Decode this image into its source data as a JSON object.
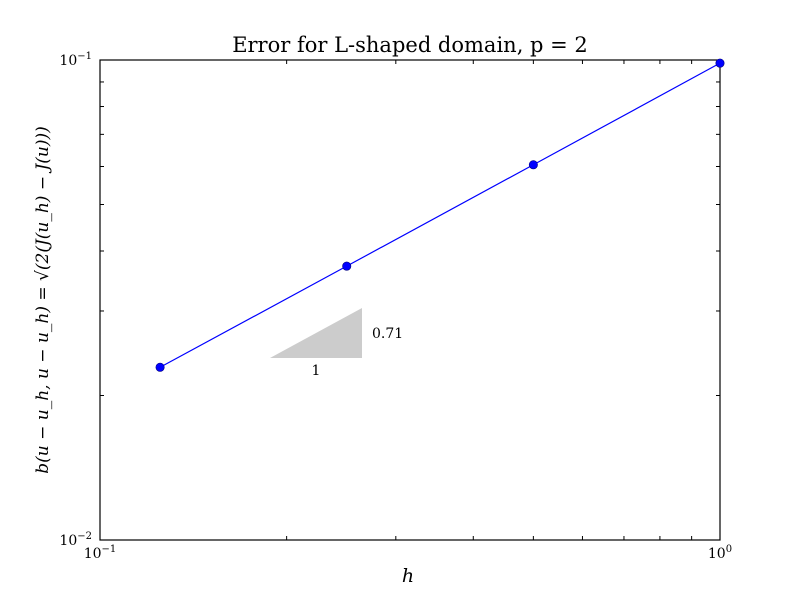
{
  "chart_data": {
    "type": "line",
    "title": "Error for L-shaped domain, p = 2",
    "xlabel": "h",
    "ylabel": "b(u − u_h, u − u_h) = √(2(J(u_h) − J(u)))",
    "xscale": "log",
    "yscale": "log",
    "xlim": [
      0.1,
      1.0
    ],
    "ylim": [
      0.01,
      0.1
    ],
    "x_major_ticks": [
      {
        "value": 0.1,
        "base": "10",
        "exp": "−1"
      },
      {
        "value": 1.0,
        "base": "10",
        "exp": "0"
      }
    ],
    "y_major_ticks": [
      {
        "value": 0.01,
        "base": "10",
        "exp": "−2"
      },
      {
        "value": 0.1,
        "base": "10",
        "exp": "−1"
      }
    ],
    "grid": false,
    "series": [
      {
        "color": "#0000ff",
        "marker": "circle",
        "x": [
          0.125,
          0.25,
          0.5,
          1.0
        ],
        "y": [
          0.0229,
          0.0372,
          0.0605,
          0.0985
        ]
      }
    ],
    "slope_triangle": {
      "run_label": "1",
      "rise_label": "0.71",
      "color": "#cccccc"
    }
  }
}
